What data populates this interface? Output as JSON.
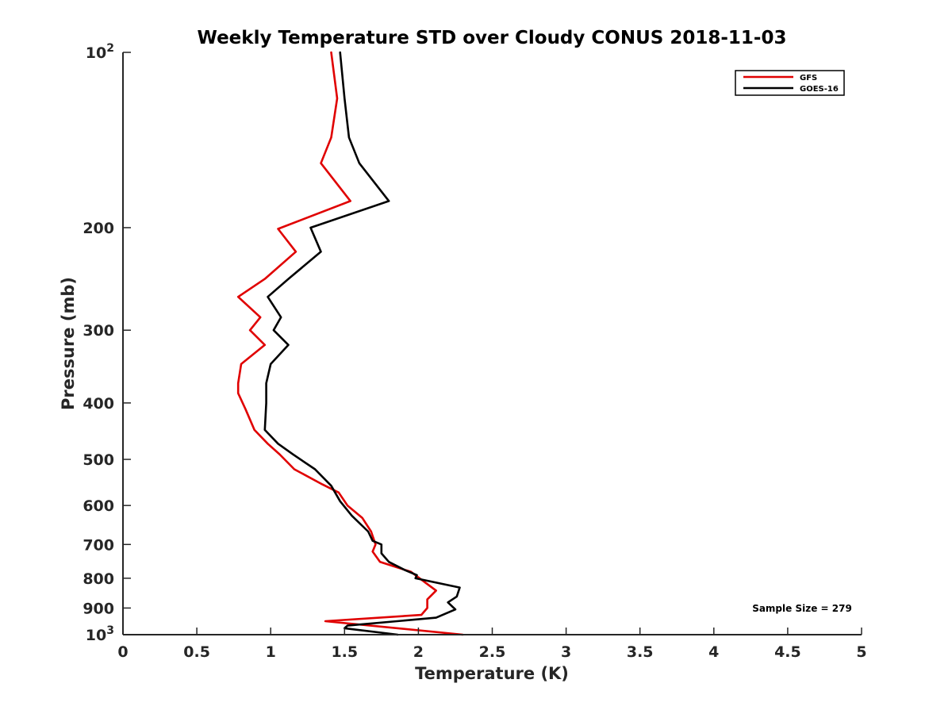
{
  "chart_data": {
    "type": "line",
    "title": "Weekly Temperature STD over Cloudy CONUS 2018-11-03",
    "xlabel": "Temperature (K)",
    "ylabel": "Pressure (mb)",
    "xlim": [
      0,
      5
    ],
    "ylim": [
      100,
      1000
    ],
    "y_scale": "log",
    "y_reversed": true,
    "x_ticks": [
      0,
      0.5,
      1,
      1.5,
      2,
      2.5,
      3,
      3.5,
      4,
      4.5,
      5
    ],
    "x_tick_labels": [
      "0",
      "0.5",
      "1",
      "1.5",
      "2",
      "2.5",
      "3",
      "3.5",
      "4",
      "4.5",
      "5"
    ],
    "y_ticks": [
      100,
      200,
      300,
      400,
      500,
      600,
      700,
      800,
      900,
      1000
    ],
    "y_tick_labels": [
      {
        "base": "10",
        "exp": "2"
      },
      {
        "base": "200",
        "exp": ""
      },
      {
        "base": "300",
        "exp": ""
      },
      {
        "base": "400",
        "exp": ""
      },
      {
        "base": "500",
        "exp": ""
      },
      {
        "base": "600",
        "exp": ""
      },
      {
        "base": "700",
        "exp": ""
      },
      {
        "base": "800",
        "exp": ""
      },
      {
        "base": "900",
        "exp": ""
      },
      {
        "base": "10",
        "exp": "3"
      }
    ],
    "grid": false,
    "legend_position": "top-right",
    "annotation": "Sample Size = 279",
    "series": [
      {
        "name": "GFS",
        "color": "#e00000",
        "points": [
          [
            1.41,
            100
          ],
          [
            1.45,
            120
          ],
          [
            1.41,
            140
          ],
          [
            1.34,
            155
          ],
          [
            1.54,
            180
          ],
          [
            1.05,
            201
          ],
          [
            1.17,
            220
          ],
          [
            0.96,
            245
          ],
          [
            0.78,
            263
          ],
          [
            0.93,
            285
          ],
          [
            0.86,
            300
          ],
          [
            0.96,
            318
          ],
          [
            0.8,
            343
          ],
          [
            0.78,
            370
          ],
          [
            0.78,
            385
          ],
          [
            0.83,
            410
          ],
          [
            0.89,
            445
          ],
          [
            0.98,
            470
          ],
          [
            1.06,
            490
          ],
          [
            1.16,
            520
          ],
          [
            1.35,
            552
          ],
          [
            1.46,
            570
          ],
          [
            1.52,
            600
          ],
          [
            1.62,
            630
          ],
          [
            1.68,
            665
          ],
          [
            1.71,
            700
          ],
          [
            1.69,
            720
          ],
          [
            1.74,
            750
          ],
          [
            1.95,
            780
          ],
          [
            2.05,
            815
          ],
          [
            2.12,
            840
          ],
          [
            2.06,
            870
          ],
          [
            2.06,
            900
          ],
          [
            2.02,
            925
          ],
          [
            1.37,
            948
          ],
          [
            2.3,
            1000
          ]
        ]
      },
      {
        "name": "GOES-16",
        "color": "#000000",
        "points": [
          [
            1.47,
            100
          ],
          [
            1.5,
            120
          ],
          [
            1.53,
            140
          ],
          [
            1.6,
            155
          ],
          [
            1.8,
            180
          ],
          [
            1.27,
            200
          ],
          [
            1.34,
            220
          ],
          [
            1.12,
            245
          ],
          [
            0.98,
            263
          ],
          [
            1.07,
            285
          ],
          [
            1.02,
            300
          ],
          [
            1.12,
            318
          ],
          [
            1.0,
            343
          ],
          [
            0.97,
            370
          ],
          [
            0.97,
            400
          ],
          [
            0.96,
            445
          ],
          [
            1.05,
            470
          ],
          [
            1.15,
            490
          ],
          [
            1.3,
            520
          ],
          [
            1.41,
            555
          ],
          [
            1.47,
            590
          ],
          [
            1.55,
            625
          ],
          [
            1.66,
            665
          ],
          [
            1.69,
            690
          ],
          [
            1.75,
            700
          ],
          [
            1.75,
            725
          ],
          [
            1.8,
            750
          ],
          [
            1.91,
            775
          ],
          [
            1.99,
            790
          ],
          [
            1.98,
            800
          ],
          [
            2.28,
            830
          ],
          [
            2.26,
            860
          ],
          [
            2.2,
            880
          ],
          [
            2.25,
            905
          ],
          [
            2.12,
            935
          ],
          [
            1.52,
            965
          ],
          [
            1.5,
            975
          ],
          [
            1.86,
            1000
          ]
        ]
      }
    ]
  }
}
